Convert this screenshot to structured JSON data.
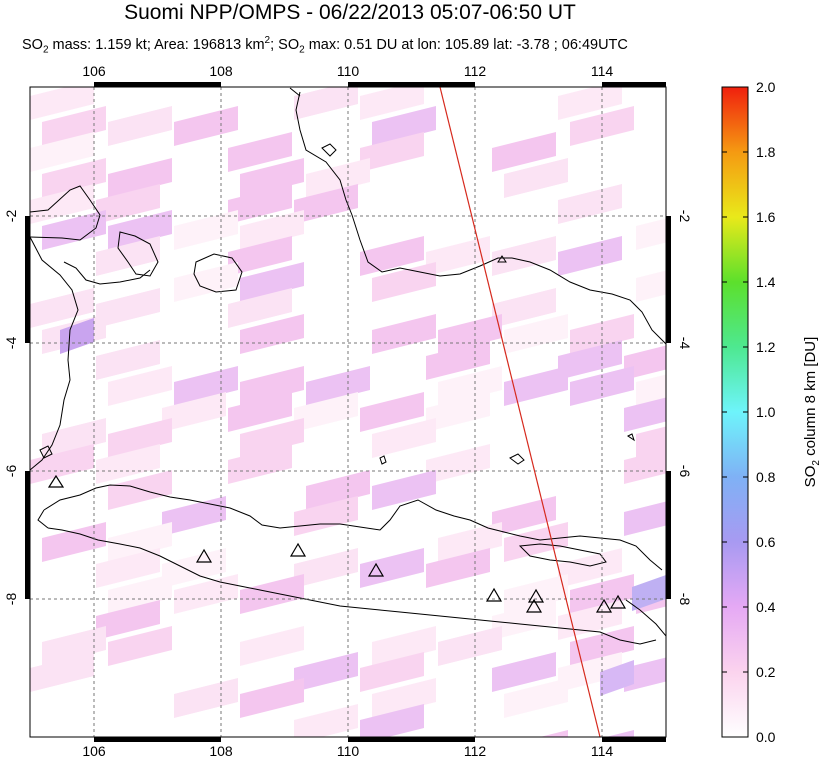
{
  "title": "Suomi NPP/OMPS - 06/22/2013 05:07-06:50 UT",
  "subtitle": {
    "p1": "SO",
    "p1_sub": "2",
    "p2": " mass: 1.159 kt; Area: 196813 km",
    "p2_sup": "2",
    "p3": "; SO",
    "p3_sub": "2",
    "p4": " max: 0.51 DU at lon: 105.89 lat: -3.78 ; 06:49UTC"
  },
  "map": {
    "lon_range": [
      105,
      115
    ],
    "lat_range": [
      -10.2,
      0.0
    ],
    "lon_ticks": [
      "106",
      "108",
      "110",
      "112",
      "114"
    ],
    "lat_ticks": [
      "-2",
      "-4",
      "-6",
      "-8"
    ],
    "swath_edge_color": "#d62a1e"
  },
  "colorbar": {
    "label": "SO",
    "label_sub": "2",
    "label_rest": " column 8 km [DU]",
    "ticks": [
      "0.0",
      "0.2",
      "0.4",
      "0.6",
      "0.8",
      "1.0",
      "1.2",
      "1.4",
      "1.6",
      "1.8",
      "2.0"
    ],
    "range": [
      0,
      2
    ]
  },
  "volcano_marker": "triangle-icon"
}
